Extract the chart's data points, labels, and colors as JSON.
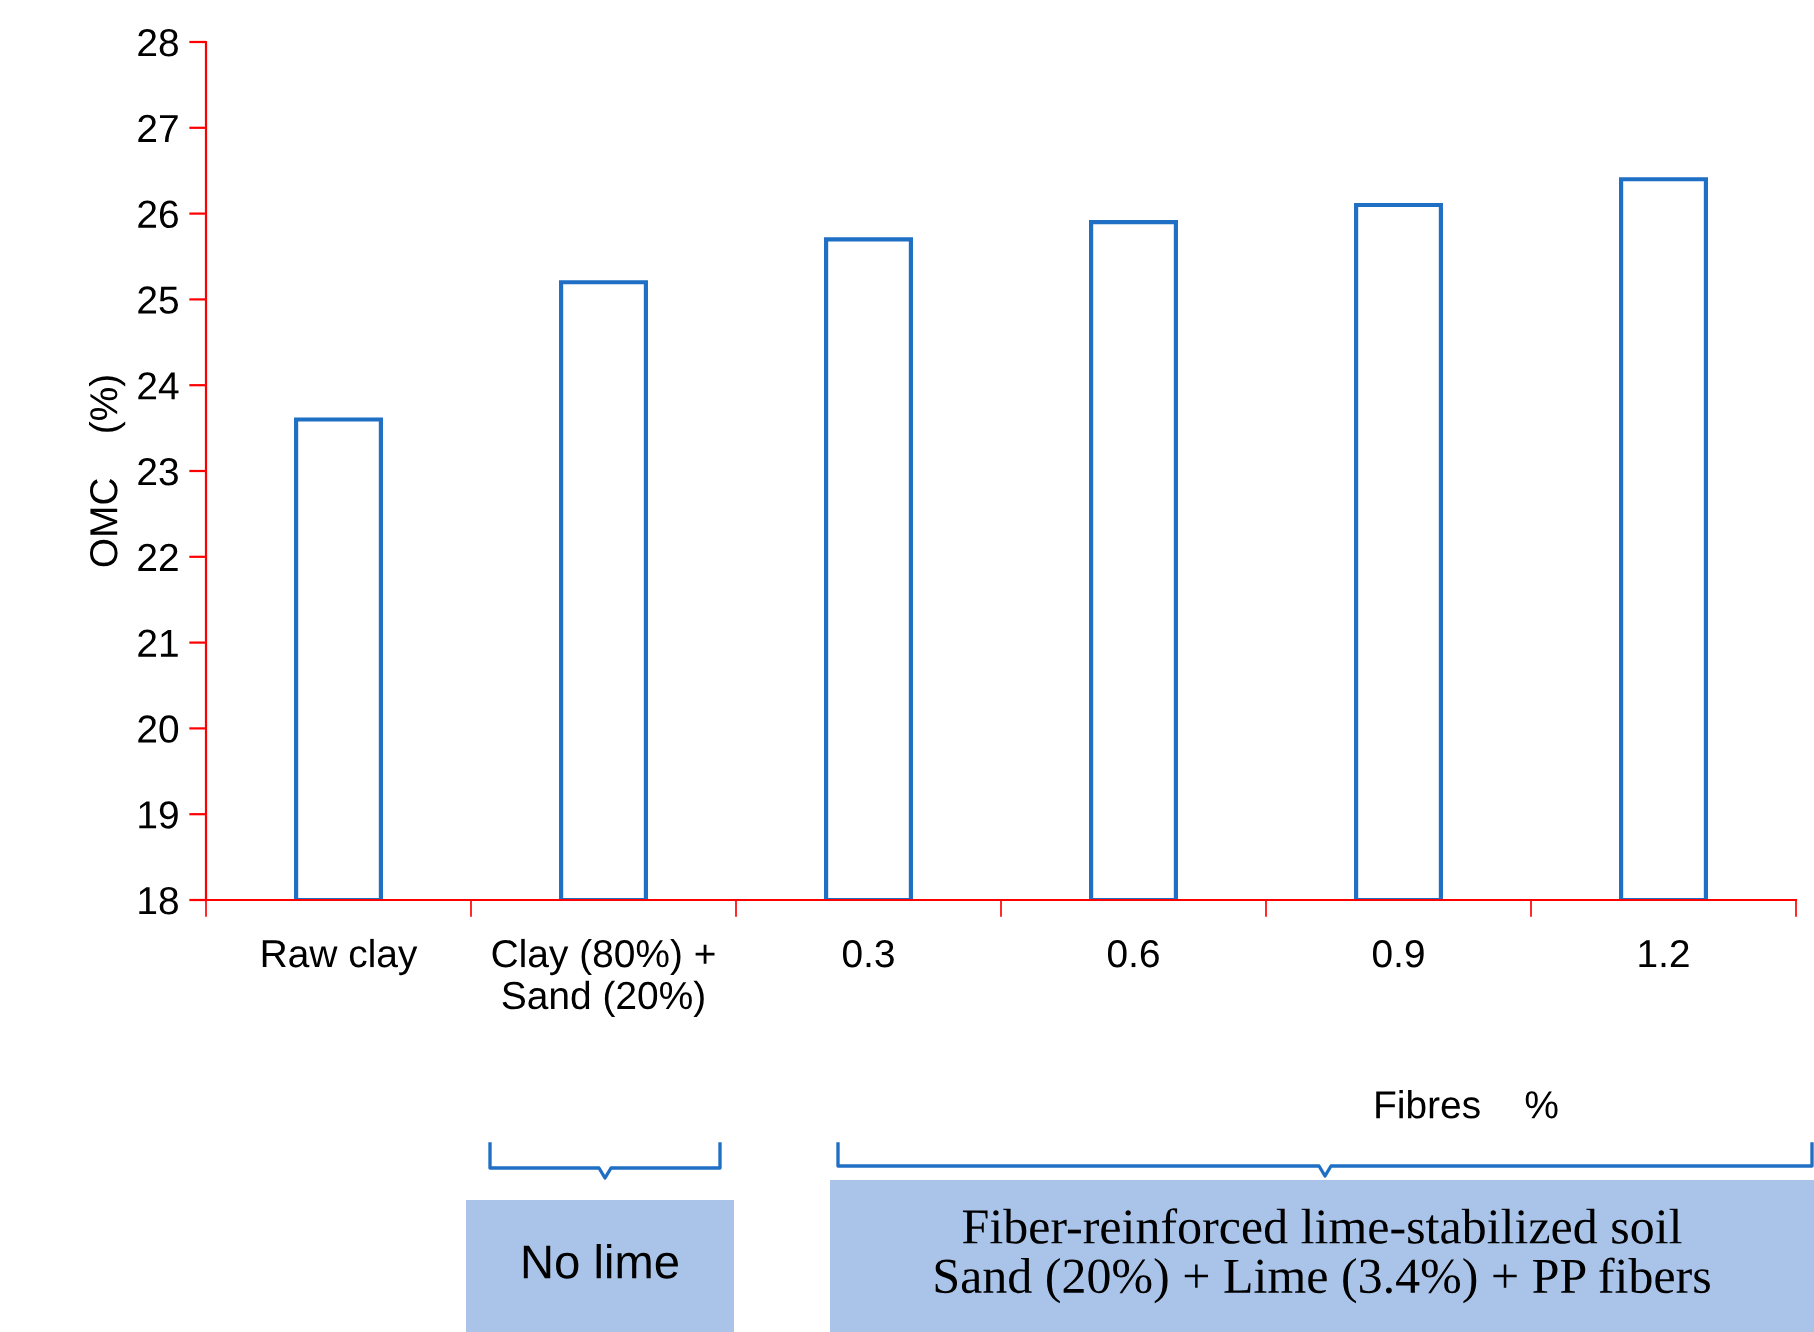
{
  "chart_data": {
    "type": "bar",
    "categories": [
      "Raw clay",
      "Clay (80%) +\nSand (20%)",
      "0.3",
      "0.6",
      "0.9",
      "1.2"
    ],
    "values": [
      23.6,
      25.2,
      25.7,
      25.9,
      26.1,
      26.4
    ],
    "color": "#1f6fc5",
    "ylabel": "OMC    (%)",
    "xlabel": "Fibres    %",
    "ylim": [
      18,
      28
    ],
    "yticks": [
      18,
      19,
      20,
      21,
      22,
      23,
      24,
      25,
      26,
      27,
      28
    ],
    "grid": false,
    "annotations": [
      "No lime",
      "Fiber-reinforced lime-stabilized soil\nSand (20%) + Lime (3.4%) + PP fibers"
    ]
  }
}
